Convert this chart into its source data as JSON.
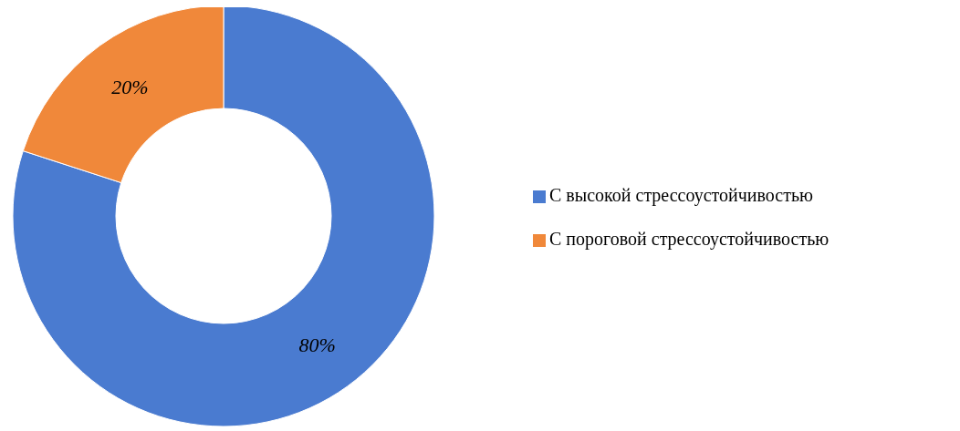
{
  "chart_data": {
    "type": "donut",
    "categories": [
      "С высокой стрессоустойчивостью",
      "С пороговой стрессоустойчивостью"
    ],
    "values": [
      80,
      20
    ],
    "colors": [
      "#4a7bd0",
      "#f0883a"
    ],
    "value_labels": [
      "80%",
      "20%"
    ],
    "legend": "right"
  }
}
